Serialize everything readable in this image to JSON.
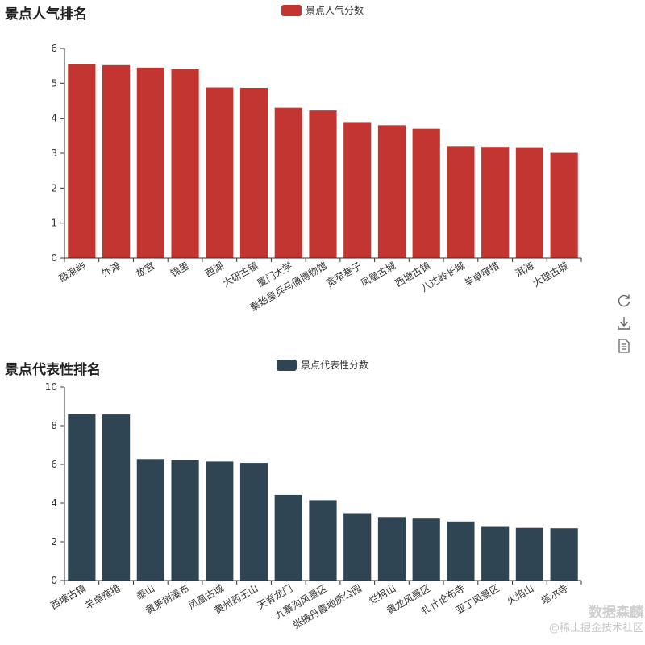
{
  "chart_data": [
    {
      "type": "bar",
      "title": "景点人气排名",
      "legend": "景点人气分数",
      "color": "#c23531",
      "categories": [
        "鼓浪屿",
        "外滩",
        "故宫",
        "锦里",
        "西湖",
        "大研古镇",
        "厦门大学",
        "秦始皇兵马俑博物馆",
        "宽窄巷子",
        "凤凰古城",
        "西塘古镇",
        "八达岭长城",
        "羊卓雍措",
        "洱海",
        "大理古城"
      ],
      "values": [
        5.55,
        5.52,
        5.45,
        5.4,
        4.88,
        4.87,
        4.3,
        4.22,
        3.89,
        3.8,
        3.7,
        3.2,
        3.18,
        3.17,
        3.01
      ],
      "ylim": [
        0,
        6
      ],
      "yticks": [
        0,
        1,
        2,
        3,
        4,
        5,
        6
      ],
      "xlabel": "",
      "ylabel": ""
    },
    {
      "type": "bar",
      "title": "景点代表性排名",
      "legend": "景点代表性分数",
      "color": "#2f4554",
      "categories": [
        "西塘古镇",
        "羊卓雍措",
        "泰山",
        "黄果树瀑布",
        "凤凰古城",
        "黄州药王山",
        "天脊龙门",
        "九寨沟风景区",
        "张掖丹霞地质公园",
        "烂柯山",
        "黄龙风景区",
        "扎什伦布寺",
        "亚丁风景区",
        "火焰山",
        "塔尔寺"
      ],
      "values": [
        8.6,
        8.58,
        6.28,
        6.23,
        6.15,
        6.08,
        4.42,
        4.15,
        3.48,
        3.28,
        3.2,
        3.05,
        2.77,
        2.72,
        2.7
      ],
      "ylim": [
        0,
        10
      ],
      "yticks": [
        0,
        2,
        4,
        6,
        8,
        10
      ],
      "xlabel": "",
      "ylabel": ""
    }
  ],
  "toolbox": {
    "icons": [
      "refresh-icon",
      "download-icon",
      "data-view-icon"
    ]
  },
  "watermark": {
    "line1": "数据森麟",
    "line2": "@稀土掘金技术社区"
  }
}
